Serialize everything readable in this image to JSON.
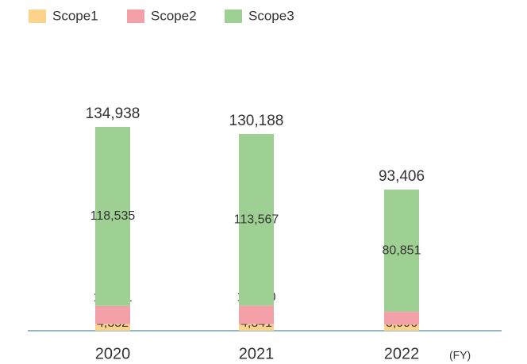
{
  "chart_data": {
    "type": "stacked_bar",
    "categories": [
      "2020",
      "2021",
      "2022"
    ],
    "x_label": "(FY)",
    "series": [
      {
        "name": "Scope1",
        "color": "#fcd38b",
        "values": [
          4352,
          4341,
          3996
        ],
        "value_labels": [
          "4,352",
          "4,341",
          "3,996"
        ]
      },
      {
        "name": "Scope2",
        "color": "#f4a0a8",
        "values": [
          12051,
          12280,
          8559
        ],
        "value_labels": [
          "12,051",
          "12,280",
          "8,559"
        ]
      },
      {
        "name": "Scope3",
        "color": "#9dd092",
        "values": [
          118535,
          113567,
          80851
        ],
        "value_labels": [
          "118,535",
          "113,567",
          "80,851"
        ]
      }
    ],
    "totals": [
      134938,
      130188,
      93406
    ],
    "total_labels": [
      "134,938",
      "130,188",
      "93,406"
    ]
  }
}
